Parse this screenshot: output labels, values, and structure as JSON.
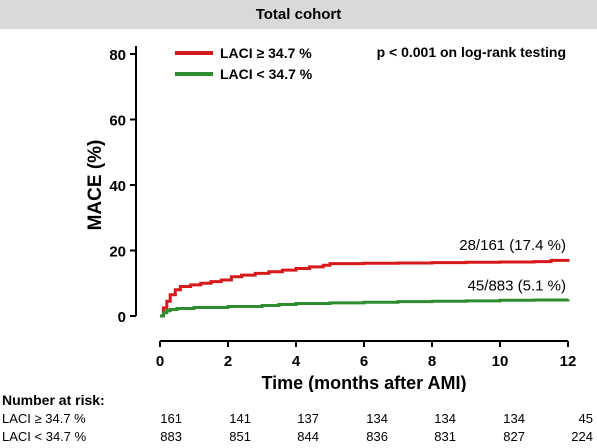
{
  "header": {
    "title": "Total cohort"
  },
  "chart_data": {
    "type": "line",
    "xlabel": "Time (months after AMI)",
    "ylabel": "MACE (%)",
    "xlim": [
      0,
      12
    ],
    "ylim": [
      0,
      80
    ],
    "x_ticks": [
      "0",
      "2",
      "4",
      "6",
      "8",
      "10",
      "12"
    ],
    "y_ticks": [
      "0",
      "20",
      "40",
      "60",
      "80"
    ],
    "annotation": "p < 0.001 on log-rank testing",
    "legend_position": "top-left",
    "series": [
      {
        "name": "LACI ≥ 34.7 %",
        "color": "#d7191c",
        "end_label": "28/161 (17.4 %)",
        "x": [
          0,
          0.1,
          0.2,
          0.3,
          0.45,
          0.6,
          0.9,
          1.2,
          1.5,
          1.8,
          2.1,
          2.4,
          2.8,
          3.2,
          3.6,
          4.0,
          4.4,
          4.8,
          5.0,
          6.0,
          7.0,
          8.0,
          9.0,
          10.0,
          11.0,
          11.5,
          12.0
        ],
        "y": [
          0,
          2.5,
          4.5,
          6.5,
          8.0,
          9.0,
          9.5,
          10.0,
          10.5,
          11.0,
          12.0,
          12.5,
          13.0,
          13.5,
          14.0,
          14.5,
          15.0,
          15.5,
          16.0,
          16.1,
          16.2,
          16.3,
          16.4,
          16.5,
          16.6,
          17.0,
          17.4
        ]
      },
      {
        "name": "LACI < 34.7 %",
        "color": "#2e8b2e",
        "end_label": "45/883 (5.1 %)",
        "x": [
          0,
          0.1,
          0.2,
          0.3,
          0.5,
          1.0,
          2.0,
          3.0,
          3.5,
          4.0,
          5.0,
          6.0,
          7.0,
          8.0,
          9.0,
          10.0,
          11.0,
          12.0
        ],
        "y": [
          0,
          1.0,
          1.6,
          2.0,
          2.3,
          2.6,
          2.9,
          3.2,
          3.5,
          3.8,
          4.0,
          4.2,
          4.4,
          4.5,
          4.6,
          4.8,
          4.9,
          5.1
        ]
      }
    ]
  },
  "risk_table": {
    "title": "Number at risk:",
    "rows": [
      {
        "label": "LACI ≥ 34.7 %",
        "values": [
          "161",
          "141",
          "137",
          "134",
          "134",
          "134",
          "45"
        ]
      },
      {
        "label": "LACI < 34.7 %",
        "values": [
          "883",
          "851",
          "844",
          "836",
          "831",
          "827",
          "224"
        ]
      }
    ]
  }
}
